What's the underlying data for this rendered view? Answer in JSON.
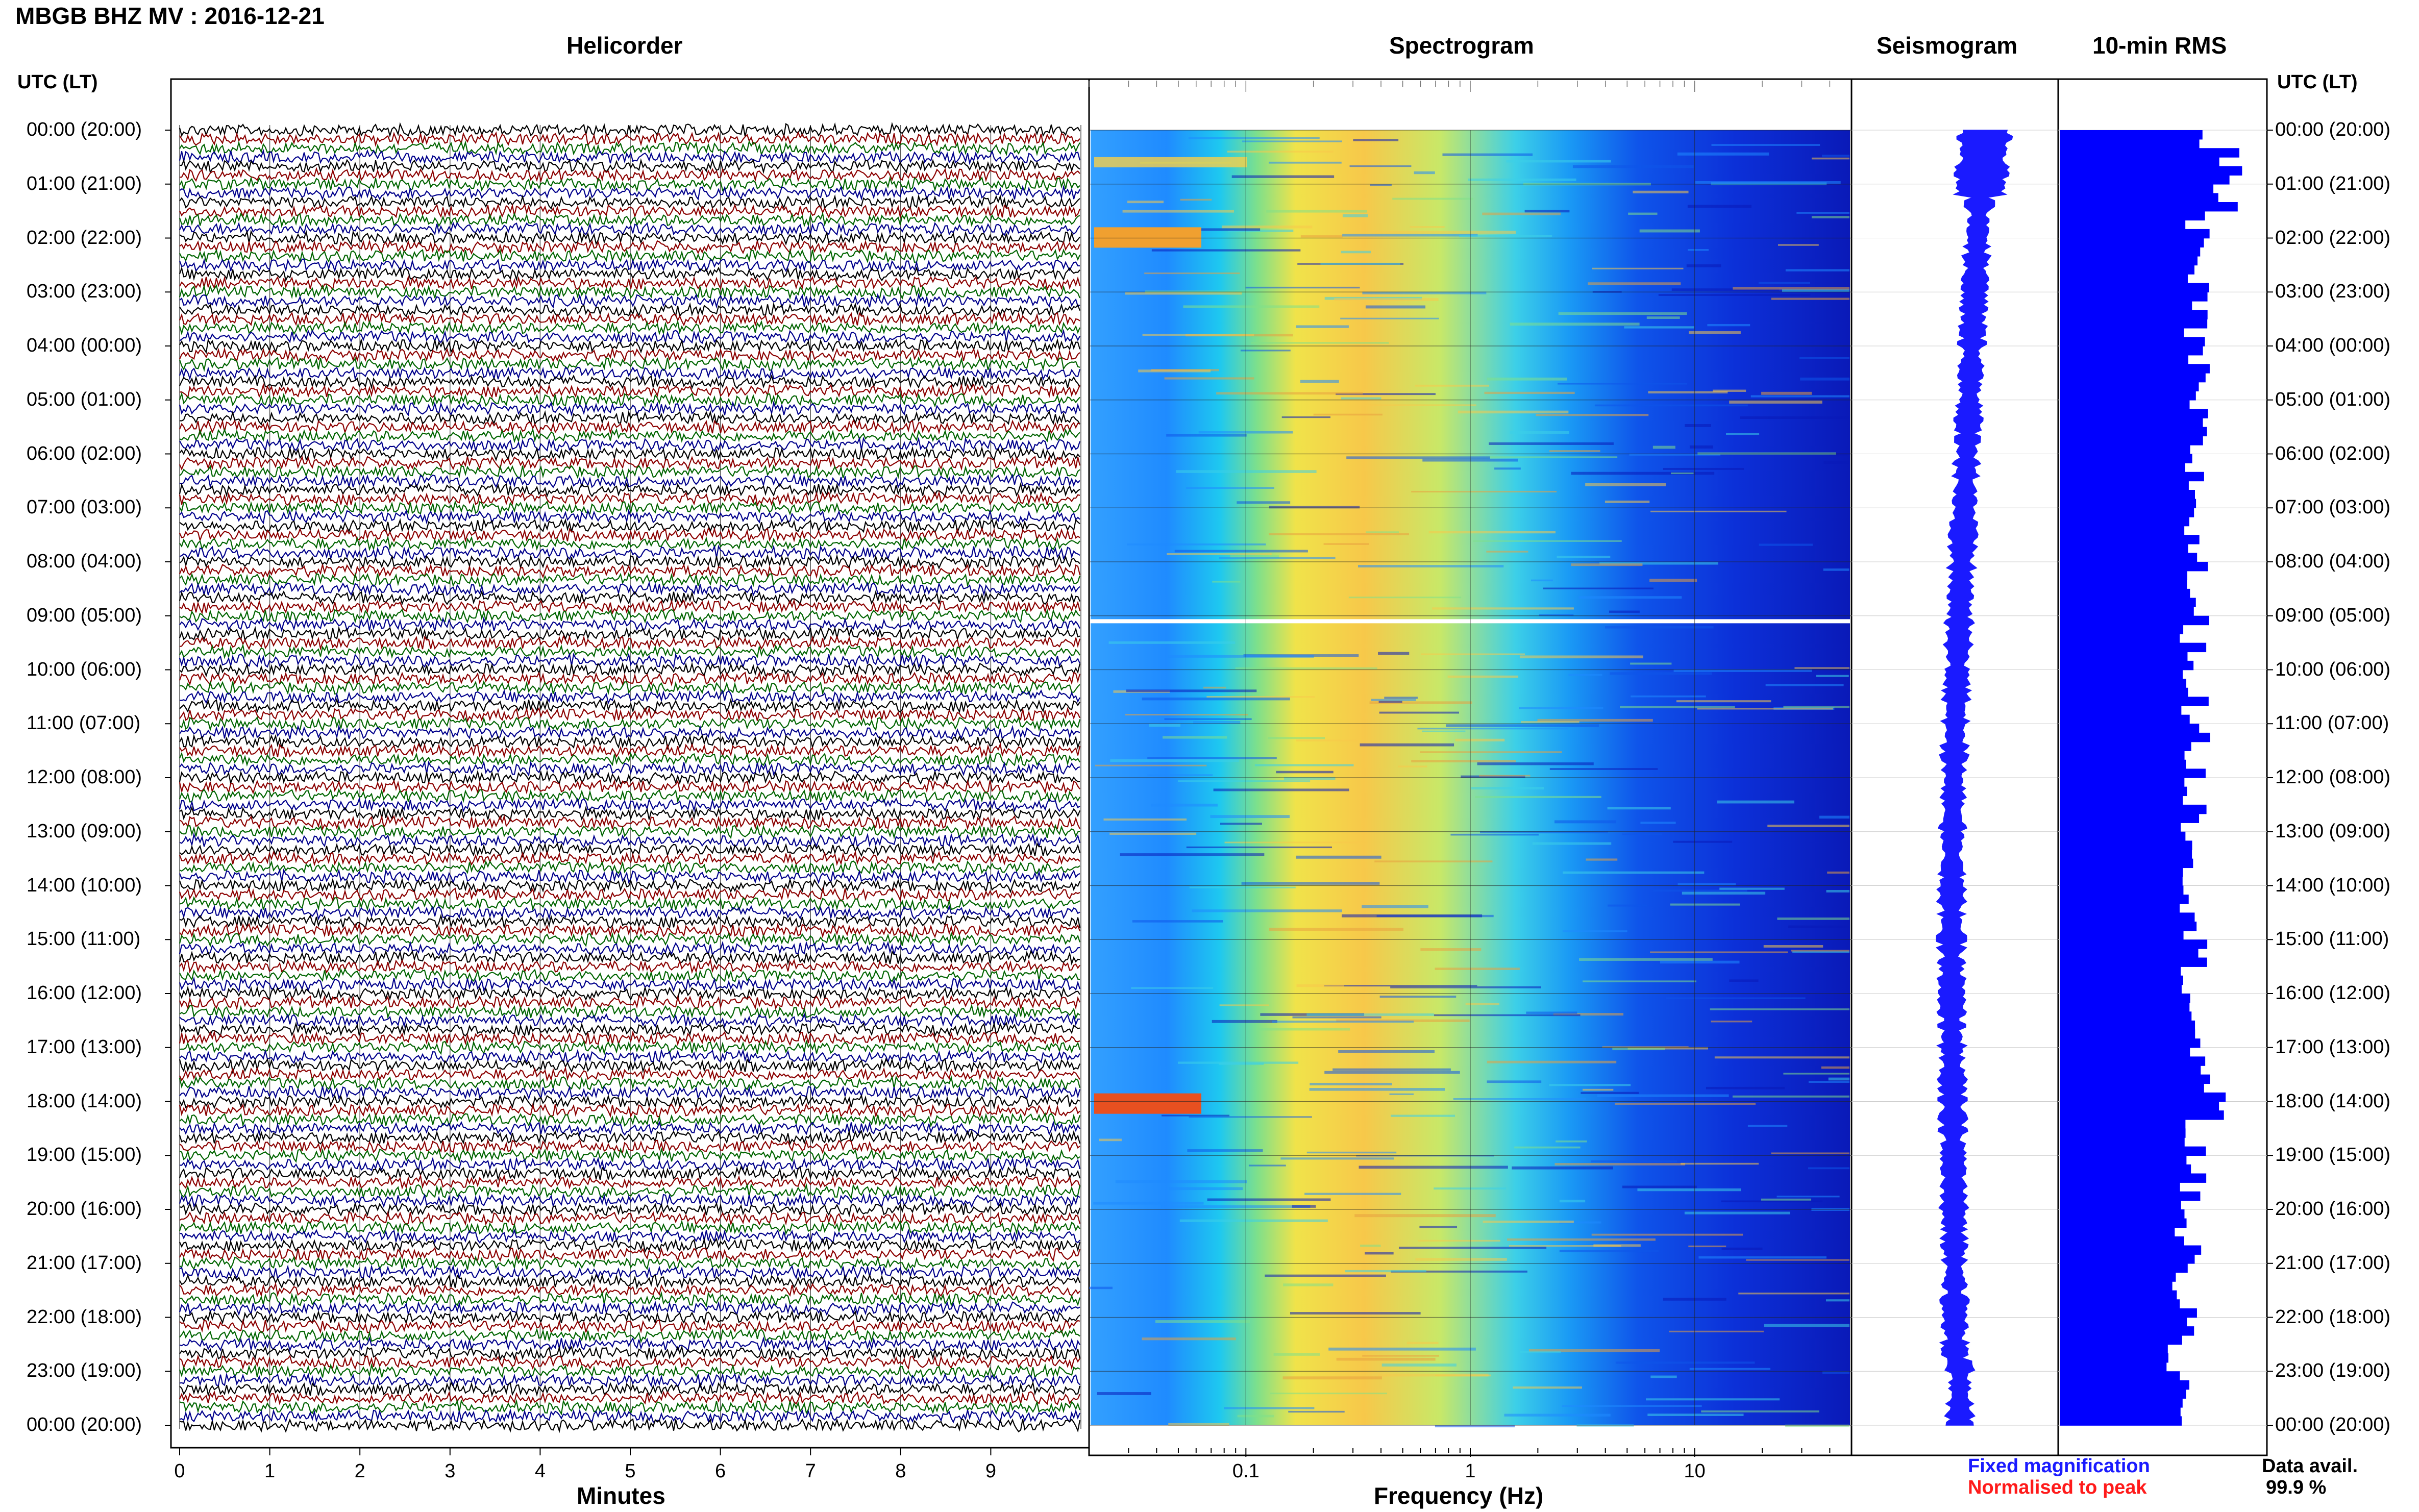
{
  "title": "MBGB BHZ MV : 2016-12-21",
  "panels": {
    "helicorder": "Helicorder",
    "spectrogram": "Spectrogram",
    "seismogram": "Seismogram",
    "rms": "10-min RMS"
  },
  "axis_header_left": "UTC (LT)",
  "axis_header_right": "UTC (LT)",
  "time_labels": [
    "00:00 (20:00)",
    "01:00 (21:00)",
    "02:00 (22:00)",
    "03:00 (23:00)",
    "04:00 (00:00)",
    "05:00 (01:00)",
    "06:00 (02:00)",
    "07:00 (03:00)",
    "08:00 (04:00)",
    "09:00 (05:00)",
    "10:00 (06:00)",
    "11:00 (07:00)",
    "12:00 (08:00)",
    "13:00 (09:00)",
    "14:00 (10:00)",
    "15:00 (11:00)",
    "16:00 (12:00)",
    "17:00 (13:00)",
    "18:00 (14:00)",
    "19:00 (15:00)",
    "20:00 (16:00)",
    "21:00 (17:00)",
    "22:00 (18:00)",
    "23:00 (19:00)",
    "00:00 (20:00)"
  ],
  "minutes_ticks": [
    "0",
    "1",
    "2",
    "3",
    "4",
    "5",
    "6",
    "7",
    "8",
    "9"
  ],
  "minutes_label": "Minutes",
  "freq_ticks": [
    "0.1",
    "1",
    "10"
  ],
  "freq_label": "Frequency (Hz)",
  "legend": {
    "fixed": "Fixed magnification",
    "normalised": "Normalised to peak",
    "fixed_color": "#1a1aff",
    "normalised_color": "#ff1a1a"
  },
  "data_avail_label": "Data avail.",
  "data_avail_value": "99.9 %",
  "colors": {
    "trace_cycle": [
      "#000000",
      "#8b0000",
      "#006400",
      "#00008b"
    ],
    "rms_bar": "#0000ff",
    "seismogram": "#1a1aff"
  },
  "chart_data": [
    {
      "type": "line",
      "name": "helicorder",
      "xlabel": "Minutes",
      "xlim": [
        0,
        10
      ],
      "rows_per_hour": 6,
      "hours": 24
    },
    {
      "type": "heatmap",
      "name": "spectrogram",
      "xlabel": "Frequency (Hz)",
      "xscale": "log",
      "xlim": [
        0.02,
        50
      ],
      "energy_peak_hz": [
        0.2,
        0.5
      ]
    },
    {
      "type": "bar",
      "name": "10-min RMS",
      "orientation": "horizontal",
      "bins_per_hour": 6,
      "hours": 24
    }
  ]
}
